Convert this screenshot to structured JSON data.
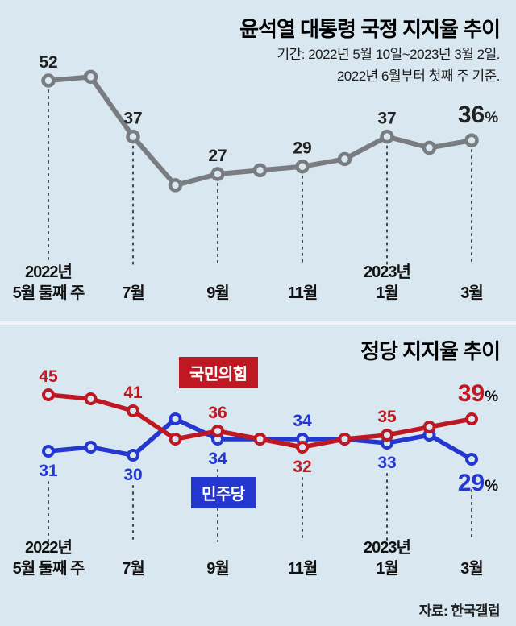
{
  "page": {
    "background": "#d9e7f0",
    "source": "자료: 한국갤럽"
  },
  "chart_data": [
    {
      "type": "line",
      "title": "윤석열 대통령 국정 지지율 추이",
      "subtitle_line1": "기간: 2022년 5월 10일~2023년 3월 2일.",
      "subtitle_line2": "2022년 6월부터 첫째 주 기준.",
      "grid": false,
      "legend_position": "none",
      "ylim": [
        20,
        58
      ],
      "x_tick_labels": [
        [
          "2022년",
          "5월 둘째 주"
        ],
        [
          "7월"
        ],
        [
          "9월"
        ],
        [
          "11월"
        ],
        [
          "2023년",
          "1월"
        ],
        [
          "3월"
        ]
      ],
      "tick_indices": [
        0,
        2,
        4,
        6,
        8,
        10
      ],
      "id": "presidential-approval",
      "line_color": "#797c80",
      "values": [
        52,
        53,
        37,
        24,
        27,
        28,
        29,
        31,
        37,
        34,
        36
      ],
      "point_labels": [
        "52",
        "37",
        "27",
        "29",
        "37",
        "36%"
      ]
    },
    {
      "type": "line",
      "title": "정당 지지율 추이",
      "grid": false,
      "legend_position": "inline-badges",
      "ylim": [
        26,
        48
      ],
      "x_tick_labels": [
        [
          "2022년",
          "5월 둘째 주"
        ],
        [
          "7월"
        ],
        [
          "9월"
        ],
        [
          "11월"
        ],
        [
          "2023년",
          "1월"
        ],
        [
          "3월"
        ]
      ],
      "tick_indices": [
        0,
        2,
        4,
        6,
        8,
        10
      ],
      "series": [
        {
          "id": "peoples-power-party",
          "name": "국민의힘",
          "color": "#c01822",
          "values": [
            45,
            44,
            41,
            34,
            36,
            34,
            32,
            34,
            35,
            37,
            39
          ],
          "point_labels": [
            "45",
            "41",
            "36",
            "32",
            "35",
            "39%"
          ]
        },
        {
          "id": "democratic-party",
          "name": "민주당",
          "color": "#2437cf",
          "values": [
            31,
            32,
            30,
            39,
            34,
            34,
            34,
            34,
            33,
            35,
            29
          ],
          "point_labels": [
            "31",
            "30",
            "34",
            "34",
            "33",
            "29%"
          ]
        }
      ]
    }
  ]
}
